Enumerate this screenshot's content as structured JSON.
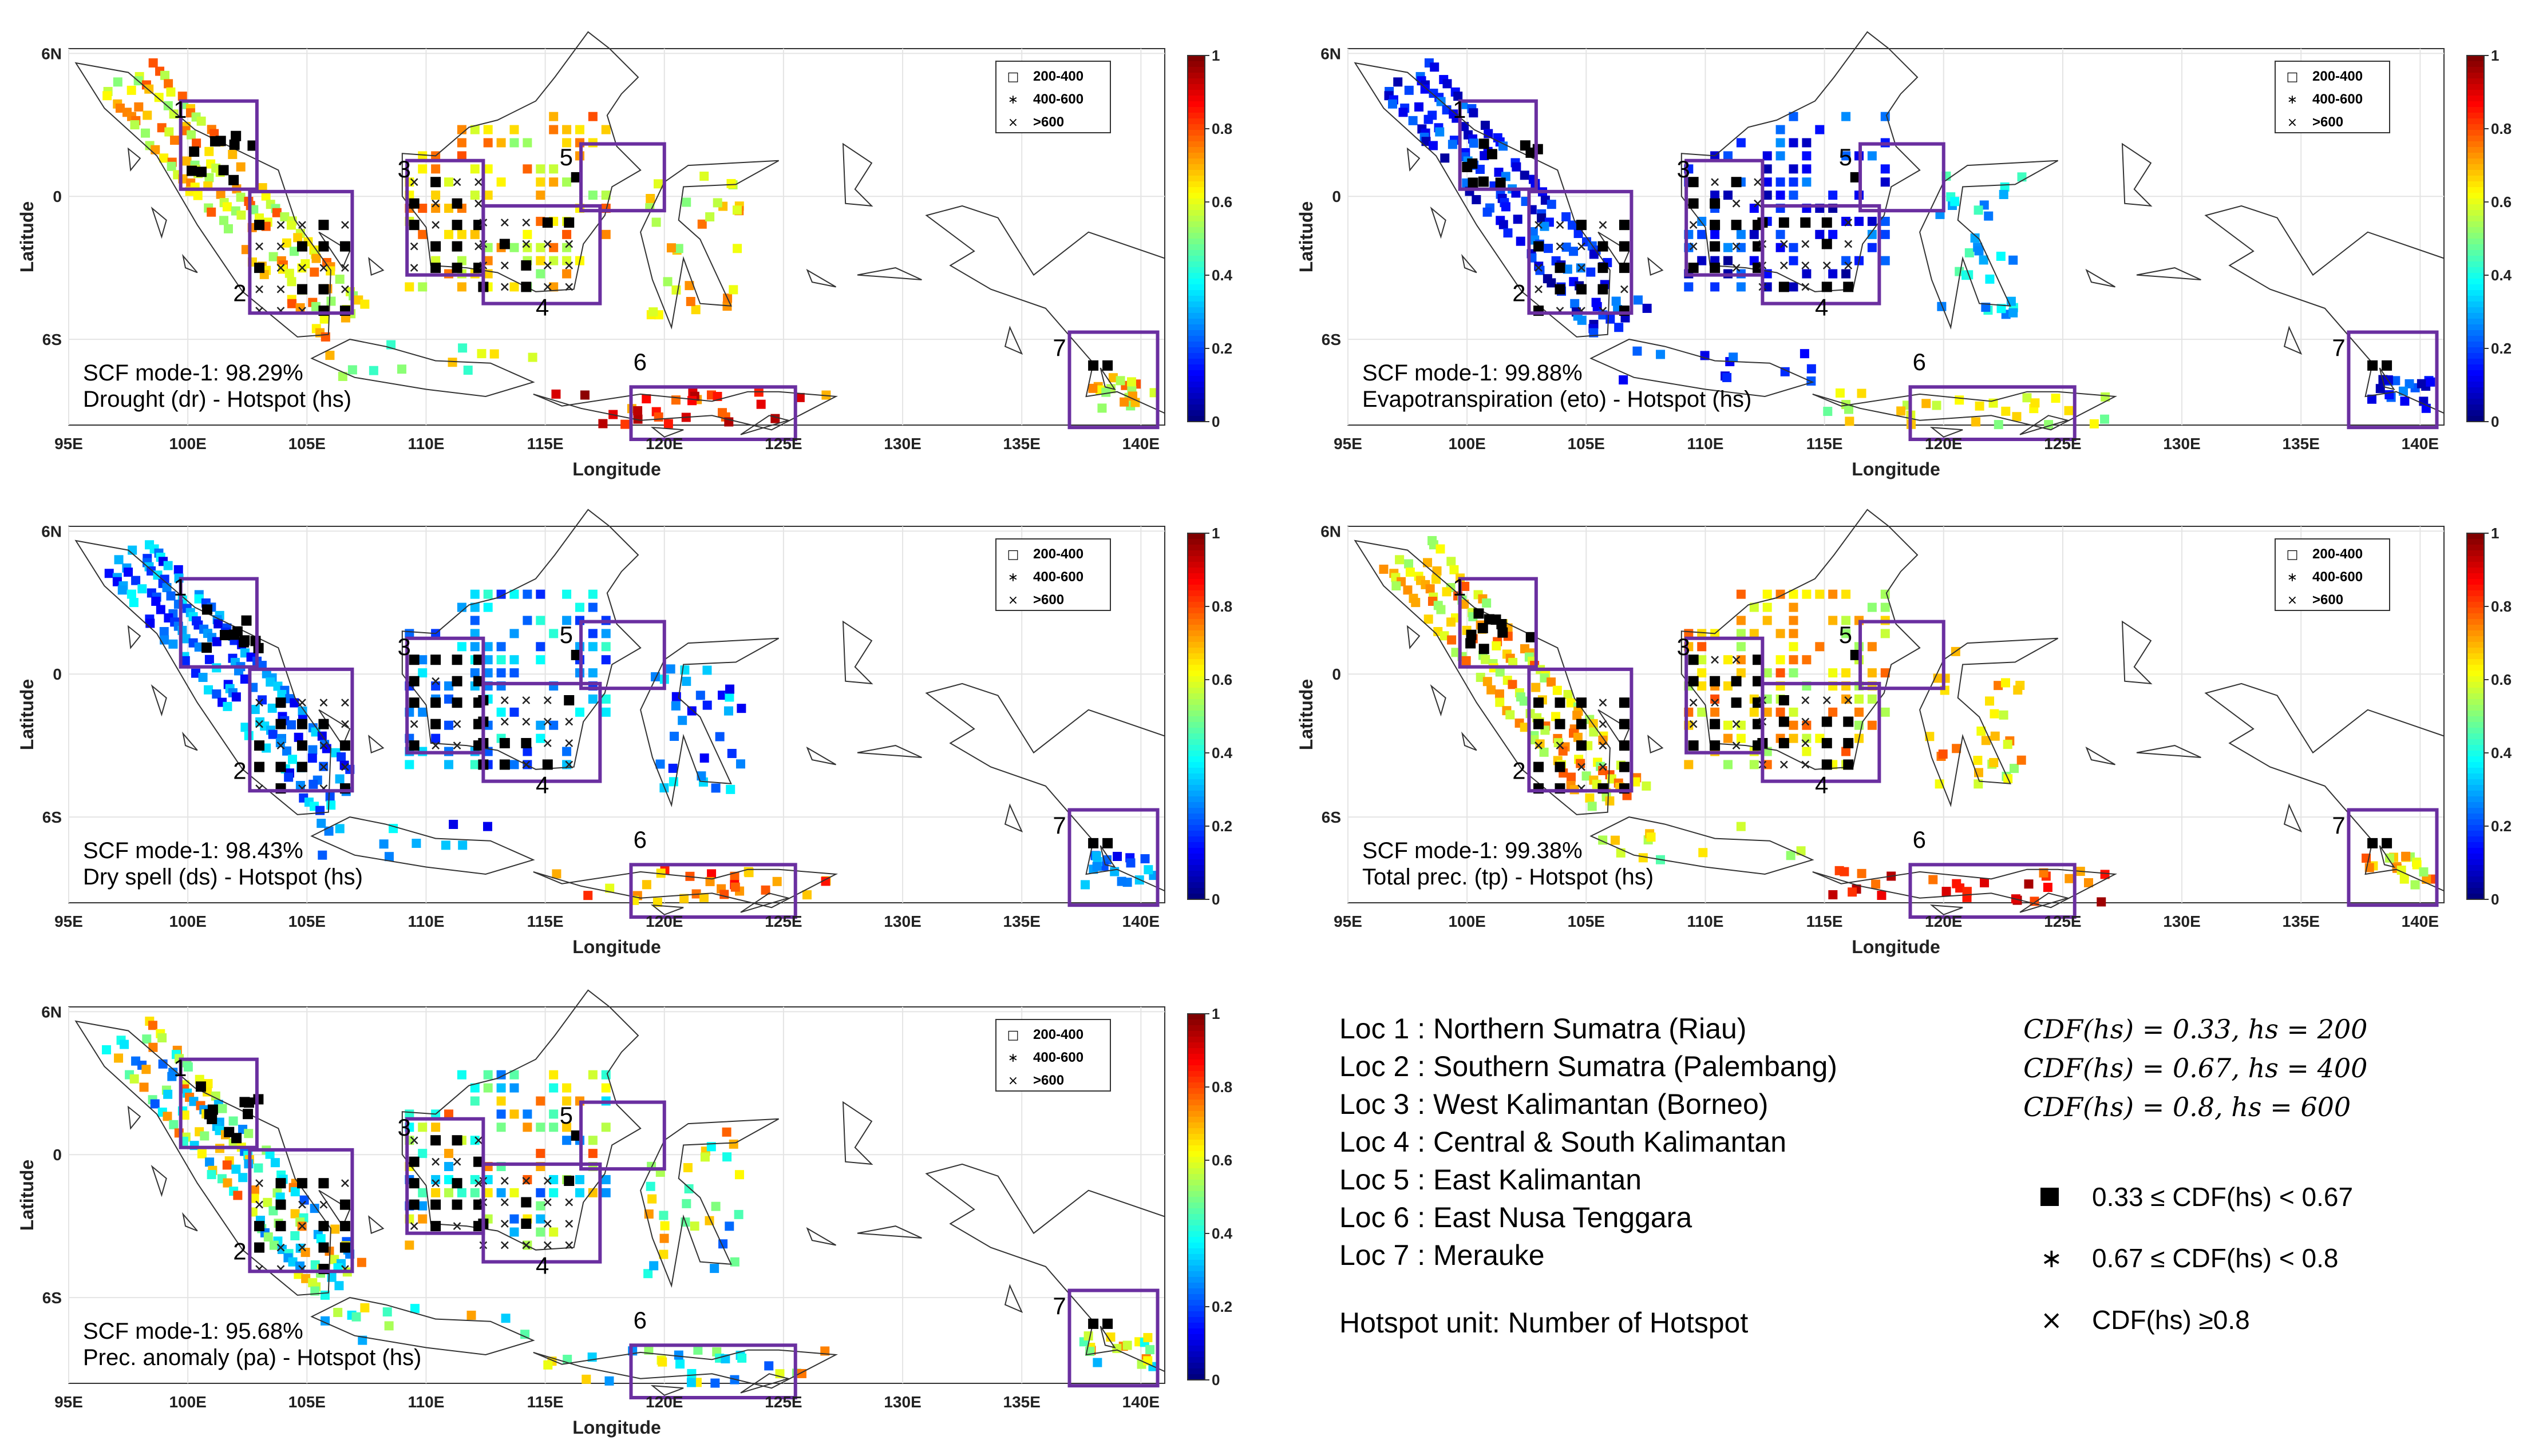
{
  "panels": [
    {
      "id": "dr",
      "scf_label": "SCF mode-1: 98.29%",
      "title": "Drought (dr) - Hotspot (hs)",
      "palette": "warm"
    },
    {
      "id": "eto",
      "scf_label": "SCF mode-1: 99.88%",
      "title": "Evapotranspiration (eto) - Hotspot (hs)",
      "palette": "cold"
    },
    {
      "id": "ds",
      "scf_label": "SCF mode-1: 98.43%",
      "title": "Dry spell (ds) - Hotspot (hs)",
      "palette": "cool"
    },
    {
      "id": "tp",
      "scf_label": "SCF mode-1: 99.38%",
      "title": "Total prec. (tp) - Hotspot (hs)",
      "palette": "warm"
    },
    {
      "id": "pa",
      "scf_label": "SCF mode-1: 95.68%",
      "title": "Prec. anomaly (pa) - Hotspot (hs)",
      "palette": "mixed"
    }
  ],
  "axes": {
    "xlabel": "Longitude",
    "ylabel": "Latitude",
    "xticks": [
      "95E",
      "100E",
      "105E",
      "110E",
      "115E",
      "120E",
      "125E",
      "130E",
      "135E",
      "140E"
    ],
    "yticks": [
      "6N",
      "0",
      "6S"
    ]
  },
  "colorbar": {
    "ticks": [
      "1",
      "0.8",
      "0.6",
      "0.4",
      "0.2",
      "0"
    ]
  },
  "inset_legend": [
    "200-400",
    "400-600",
    ">600"
  ],
  "region_labels": [
    "1",
    "2",
    "3",
    "4",
    "5",
    "6",
    "7"
  ],
  "locations": [
    "Loc 1 : Northern Sumatra (Riau)",
    "Loc 2 : Southern Sumatra (Palembang)",
    "Loc 3 : West Kalimantan (Borneo)",
    "Loc 4 : Central & South Kalimantan",
    "Loc 5 : East Kalimantan",
    "Loc 6 : East Nusa Tenggara",
    "Loc 7 : Merauke"
  ],
  "unit_note": "Hotspot unit: Number of Hotspot",
  "cdf_defs": [
    "CDF(hs) = 0.33, hs = 200",
    "CDF(hs) = 0.67, hs = 400",
    "CDF(hs) = 0.8, hs = 600"
  ],
  "marker_legend": [
    {
      "symbol": "■",
      "label": "0.33 ≤ CDF(hs) < 0.67"
    },
    {
      "symbol": "∗",
      "label": "0.67 ≤ CDF(hs) < 0.8"
    },
    {
      "symbol": "×",
      "label": "CDF(hs) ≥0.8"
    }
  ],
  "colors": {
    "box": "#6a2fa0",
    "coast": "#333333"
  }
}
